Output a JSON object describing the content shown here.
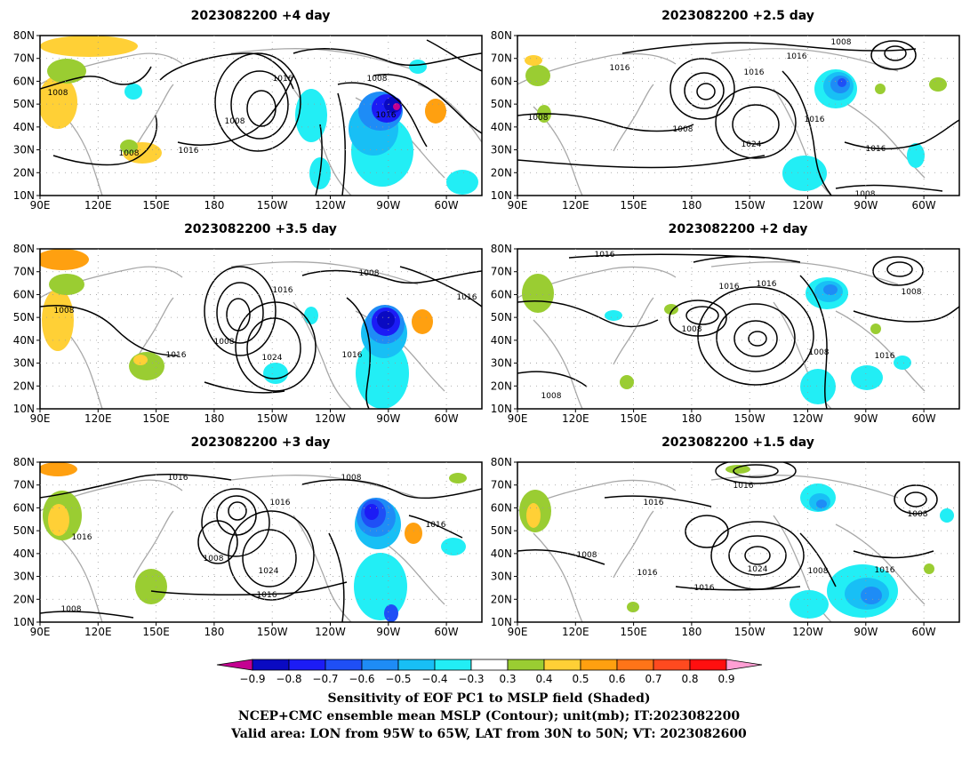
{
  "panels": [
    {
      "title": "2023082200  +4 day",
      "labels": [
        "1008",
        "1016",
        "1008",
        "1016",
        "1008",
        "1016",
        "1008"
      ]
    },
    {
      "title": "2023082200  +2.5 day",
      "labels": [
        "1008",
        "1016",
        "1016",
        "1016",
        "1008",
        "1024",
        "1016",
        "1016",
        "1008",
        "1008"
      ]
    },
    {
      "title": "2023082200  +3.5 day",
      "labels": [
        "1008",
        "1016",
        "1008",
        "1016",
        "1024",
        "1008",
        "1016",
        "1016"
      ]
    },
    {
      "title": "2023082200  +2 day",
      "labels": [
        "1016",
        "1016",
        "1016",
        "1008",
        "1008",
        "1008",
        "1016",
        "1008"
      ]
    },
    {
      "title": "2023082200  +3 day",
      "labels": [
        "1016",
        "1016",
        "1008",
        "1016",
        "1008",
        "1008",
        "1024",
        "1016",
        "1016"
      ]
    },
    {
      "title": "2023082200  +1.5 day",
      "labels": [
        "1016",
        "1016",
        "1008",
        "1008",
        "1016",
        "1024",
        "1016",
        "1008",
        "1016"
      ]
    }
  ],
  "x_ticks": [
    "90E",
    "120E",
    "150E",
    "180",
    "150W",
    "120W",
    "90W",
    "60W"
  ],
  "y_ticks": [
    "80N",
    "70N",
    "60N",
    "50N",
    "40N",
    "30N",
    "20N",
    "10N"
  ],
  "colorbar": {
    "labels": [
      "−0.9",
      "−0.8",
      "−0.7",
      "−0.6",
      "−0.5",
      "−0.4",
      "−0.3",
      "0.3",
      "0.4",
      "0.5",
      "0.6",
      "0.7",
      "0.8",
      "0.9"
    ],
    "colors": [
      "#c40091",
      "#0a0ac2",
      "#1c1cf5",
      "#1f4ff6",
      "#1e8cf6",
      "#18bff5",
      "#22eef5",
      "#ffffff",
      "#9acd32",
      "#ffd036",
      "#ffa010",
      "#ff7418",
      "#ff4a1f",
      "#ff0f0f",
      "#ff9fd4"
    ]
  },
  "footer": {
    "line1": "Sensitivity of EOF PC1 to MSLP field (Shaded)",
    "line2": "NCEP+CMC ensemble mean MSLP (Contour); unit(mb); IT:2023082200",
    "line3": "Valid area: LON from 95W to 65W, LAT from 30N to 50N; VT: 2023082600"
  }
}
